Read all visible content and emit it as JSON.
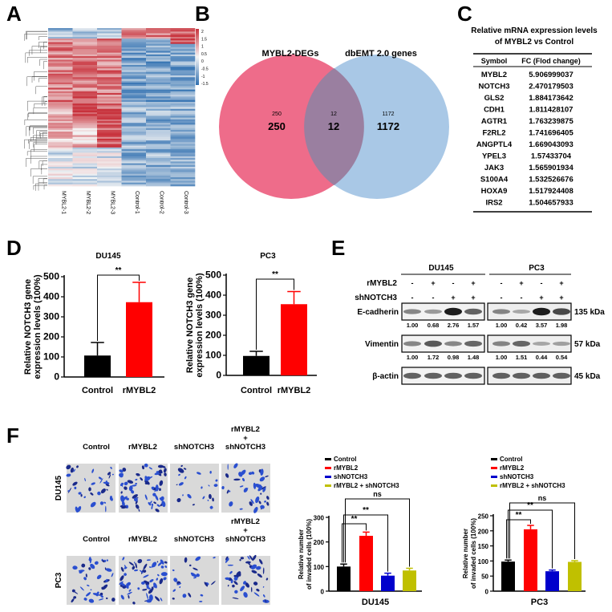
{
  "panel_letters": {
    "A": "A",
    "B": "B",
    "C": "C",
    "D": "D",
    "E": "E",
    "F": "F"
  },
  "heatmap": {
    "columns": [
      "MYBL2-1",
      "MYBL2-2",
      "MYBL2-3",
      "Control-1",
      "Control-2",
      "Control-3"
    ],
    "colorbar_ticks": [
      "2",
      "1.5",
      "1",
      "0.5",
      "0",
      "-0.5",
      "-1",
      "-1.5"
    ],
    "colors": {
      "high": "#c8323c",
      "mid": "#f5f5f5",
      "low": "#2f6fb0"
    }
  },
  "venn": {
    "left_label": "MYBL2-DEGs",
    "right_label": "dbEMT 2.0 genes",
    "left_only_small": "250",
    "left_only": "250",
    "overlap_small": "12",
    "overlap": "12",
    "right_only_small": "1172",
    "right_only": "1172",
    "colors": {
      "left": "#ee6c8a",
      "right": "#a9c8e6",
      "overlap": "#9a7fa0"
    }
  },
  "table": {
    "title_line1": "Relative mRNA expression levels",
    "title_line2": "of MYBL2 vs Control",
    "headers": [
      "Symbol",
      "FC (Flod change)"
    ],
    "rows": [
      [
        "MYBL2",
        "5.906999037"
      ],
      [
        "NOTCH3",
        "2.470179503"
      ],
      [
        "GLS2",
        "1.884173642"
      ],
      [
        "CDH1",
        "1.811428107"
      ],
      [
        "AGTR1",
        "1.763239875"
      ],
      [
        "F2RL2",
        "1.741696405"
      ],
      [
        "ANGPTL4",
        "1.669043093"
      ],
      [
        "YPEL3",
        "1.57433704"
      ],
      [
        "JAK3",
        "1.565901934"
      ],
      [
        "S100A4",
        "1.532526676"
      ],
      [
        "HOXA9",
        "1.517924408"
      ],
      [
        "IRS2",
        "1.504657933"
      ]
    ]
  },
  "western": {
    "groups": [
      "DU145",
      "PC3"
    ],
    "conditions": [
      {
        "label": "rMYBL2",
        "values": [
          "-",
          "+",
          "-",
          "+",
          "-",
          "+",
          "-",
          "+"
        ]
      },
      {
        "label": "shNOTCH3",
        "values": [
          "-",
          "-",
          "+",
          "+",
          "-",
          "-",
          "+",
          "+"
        ]
      }
    ],
    "blots": [
      {
        "label": "E-cadherin",
        "size": "135 kDa",
        "quant": [
          "1.00",
          "0.68",
          "2.76",
          "1.57",
          "1.00",
          "0.42",
          "3.57",
          "1.98"
        ]
      },
      {
        "label": "Vimentin",
        "size": "57 kDa",
        "quant": [
          "1.00",
          "1.72",
          "0.98",
          "1.48",
          "1.00",
          "1.51",
          "0.44",
          "0.54"
        ]
      },
      {
        "label": "β-actin",
        "size": "45 kDa",
        "quant": null
      }
    ]
  },
  "invasion_images": {
    "columns": [
      [
        "Control"
      ],
      [
        "rMYBL2"
      ],
      [
        "shNOTCH3"
      ],
      [
        "rMYBL2",
        "+",
        "shNOTCH3"
      ]
    ],
    "rows": [
      "DU145",
      "PC3"
    ]
  },
  "chart_data": [
    {
      "id": "D-DU145",
      "type": "bar",
      "title": "DU145",
      "ylabel": [
        "Relative NOTCH3 gene",
        "expression levels (100%)"
      ],
      "categories": [
        "Control",
        "rMYBL2"
      ],
      "values": [
        107,
        373
      ],
      "errors": [
        65,
        99
      ],
      "colors": [
        "#000000",
        "#ff0000"
      ],
      "ylim": [
        0,
        500
      ],
      "yticks": [
        0,
        100,
        200,
        300,
        400,
        500
      ],
      "significance": [
        {
          "between": [
            "Control",
            "rMYBL2"
          ],
          "label": "**"
        }
      ],
      "xlabel": ""
    },
    {
      "id": "D-PC3",
      "type": "bar",
      "title": "PC3",
      "ylabel": [
        "Relative NOTCH3 gene",
        "expression levels (100%)"
      ],
      "categories": [
        "Control",
        "rMYBL2"
      ],
      "values": [
        97,
        355
      ],
      "errors": [
        23,
        63
      ],
      "colors": [
        "#000000",
        "#ff0000"
      ],
      "ylim": [
        0,
        500
      ],
      "yticks": [
        0,
        100,
        200,
        300,
        400,
        500
      ],
      "significance": [
        {
          "between": [
            "Control",
            "rMYBL2"
          ],
          "label": "**"
        }
      ],
      "xlabel": ""
    },
    {
      "id": "F-DU145",
      "type": "bar",
      "title": "",
      "xlabel": "DU145",
      "ylabel": [
        "Relative number",
        "of invaded cells (100%)"
      ],
      "categories": [
        "Control",
        "rMYBL2",
        "shNOTCH3",
        "rMYBL2 + shNOTCH3"
      ],
      "values": [
        100,
        225,
        63,
        84
      ],
      "errors": [
        10,
        15,
        10,
        9
      ],
      "colors": [
        "#000000",
        "#ff0000",
        "#0000cc",
        "#c0c000"
      ],
      "ylim": [
        0,
        300
      ],
      "yticks": [
        0,
        100,
        200,
        300
      ],
      "legend": [
        "Control",
        "rMYBL2",
        "shNOTCH3",
        "rMYBL2 + shNOTCH3"
      ],
      "legend_position": "top-left",
      "significance": [
        {
          "between": [
            "Control",
            "rMYBL2"
          ],
          "label": "**"
        },
        {
          "between": [
            "Control",
            "shNOTCH3"
          ],
          "label": "**"
        },
        {
          "between": [
            "Control",
            "rMYBL2 + shNOTCH3"
          ],
          "label": "ns"
        }
      ]
    },
    {
      "id": "F-PC3",
      "type": "bar",
      "title": "",
      "xlabel": "PC3",
      "ylabel": [
        "Relative number",
        "of invaded cells (100%)"
      ],
      "categories": [
        "Control",
        "rMYBL2",
        "shNOTCH3",
        "rMYBL2 + shNOTCH3"
      ],
      "values": [
        98,
        205,
        66,
        97
      ],
      "errors": [
        5,
        13,
        4,
        4
      ],
      "colors": [
        "#000000",
        "#ff0000",
        "#0000cc",
        "#c0c000"
      ],
      "ylim": [
        0,
        250
      ],
      "yticks": [
        0,
        50,
        100,
        150,
        200,
        250
      ],
      "legend": [
        "Control",
        "rMYBL2",
        "shNOTCH3",
        "rMYBL2 + shNOTCH3"
      ],
      "legend_position": "top-left",
      "significance": [
        {
          "between": [
            "Control",
            "rMYBL2"
          ],
          "label": "**"
        },
        {
          "between": [
            "Control",
            "shNOTCH3"
          ],
          "label": "**"
        },
        {
          "between": [
            "Control",
            "rMYBL2 + shNOTCH3"
          ],
          "label": "ns"
        }
      ]
    }
  ]
}
